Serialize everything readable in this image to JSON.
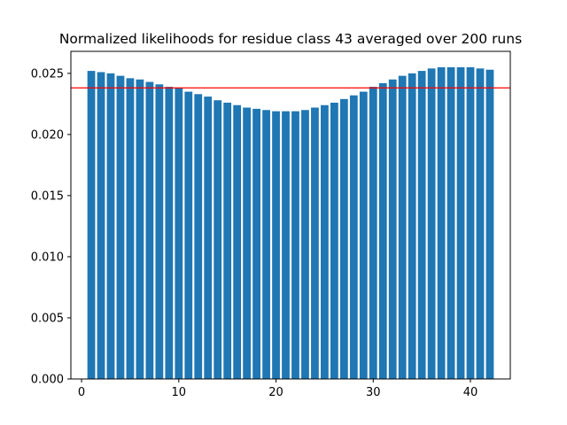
{
  "chart_data": {
    "type": "bar",
    "title": "Normalized likelihoods for residue class 43 averaged over 200 runs",
    "xlabel": "",
    "ylabel": "",
    "x": [
      1,
      2,
      3,
      4,
      5,
      6,
      7,
      8,
      9,
      10,
      11,
      12,
      13,
      14,
      15,
      16,
      17,
      18,
      19,
      20,
      21,
      22,
      23,
      24,
      25,
      26,
      27,
      28,
      29,
      30,
      31,
      32,
      33,
      34,
      35,
      36,
      37,
      38,
      39,
      40,
      41,
      42
    ],
    "values": [
      0.0252,
      0.0251,
      0.025,
      0.0248,
      0.0246,
      0.0245,
      0.0243,
      0.0241,
      0.0239,
      0.0238,
      0.0235,
      0.0233,
      0.0231,
      0.0228,
      0.0226,
      0.0224,
      0.0222,
      0.0221,
      0.022,
      0.0219,
      0.0219,
      0.0219,
      0.022,
      0.0222,
      0.0224,
      0.0226,
      0.0229,
      0.0232,
      0.0235,
      0.0239,
      0.0242,
      0.0245,
      0.0248,
      0.025,
      0.0252,
      0.0254,
      0.0255,
      0.0255,
      0.0255,
      0.0255,
      0.0254,
      0.0253
    ],
    "reference_line": {
      "y": 0.02381,
      "color": "#ff0000"
    },
    "bar_color": "#1f77b4",
    "xlim": [
      -1.1,
      44.1
    ],
    "ylim": [
      0,
      0.0268
    ],
    "xticks": [
      0,
      10,
      20,
      30,
      40
    ],
    "xtick_labels": [
      "0",
      "10",
      "20",
      "30",
      "40"
    ],
    "yticks": [
      0,
      0.005,
      0.01,
      0.015,
      0.02,
      0.025
    ],
    "ytick_labels": [
      "0.000",
      "0.005",
      "0.010",
      "0.015",
      "0.020",
      "0.025"
    ],
    "grid": false,
    "legend": "none"
  }
}
